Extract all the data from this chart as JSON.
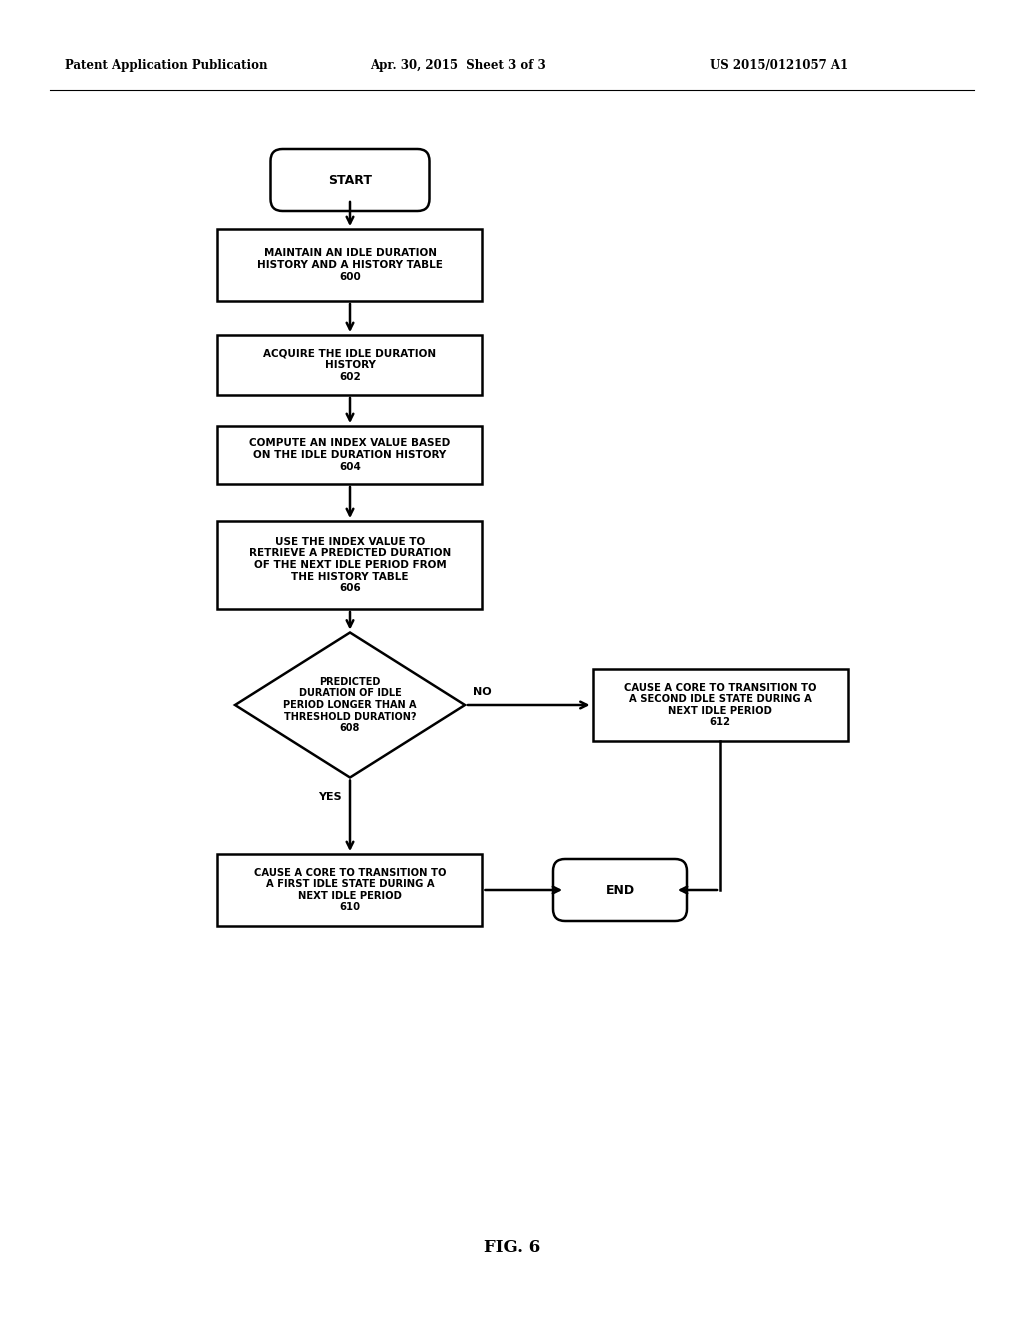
{
  "bg_color": "#ffffff",
  "header_left": "Patent Application Publication",
  "header_center": "Apr. 30, 2015  Sheet 3 of 3",
  "header_right": "US 2015/0121057 A1",
  "fig_label": "FIG. 6",
  "figw": 10.24,
  "figh": 13.2,
  "dpi": 100
}
